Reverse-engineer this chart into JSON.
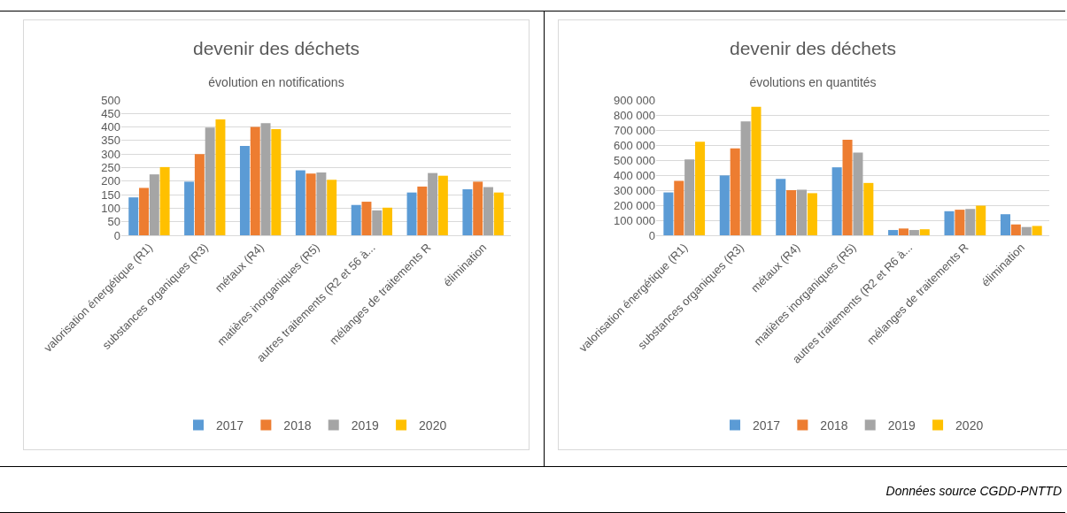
{
  "chart_data": [
    {
      "type": "bar",
      "title": "devenir des déchets",
      "subtitle": "évolution en notifications",
      "categories": [
        "valorisation énergétique (R1)",
        "substances organiques (R3)",
        "métaux (R4)",
        "matières inorganiques (R5)",
        "autres traitements (R2 et 56 à...",
        "mélanges de traitements R",
        "élimination"
      ],
      "series": [
        {
          "name": "2017",
          "color": "#5b9bd5",
          "values": [
            140,
            198,
            330,
            240,
            112,
            158,
            170
          ]
        },
        {
          "name": "2018",
          "color": "#ed7d31",
          "values": [
            175,
            300,
            400,
            228,
            124,
            180,
            198
          ]
        },
        {
          "name": "2019",
          "color": "#a5a5a5",
          "values": [
            225,
            398,
            414,
            232,
            92,
            230,
            178
          ]
        },
        {
          "name": "2020",
          "color": "#ffc000",
          "values": [
            252,
            428,
            392,
            205,
            102,
            220,
            158
          ]
        }
      ],
      "ylim": [
        0,
        500
      ],
      "yticks": [
        0,
        50,
        100,
        150,
        200,
        250,
        300,
        350,
        400,
        450,
        500
      ],
      "grid": "y",
      "legend": "bottom"
    },
    {
      "type": "bar",
      "title": "devenir des déchets",
      "subtitle": "évolutions en quantités",
      "categories": [
        "valorisation énergétique (R1)",
        "substances organiques (R3)",
        "métaux (R4)",
        "matières inorganiques (R5)",
        "autres traitements (R2 et R6 à...",
        "mélanges de traitements R",
        "élimination"
      ],
      "series": [
        {
          "name": "2017",
          "color": "#5b9bd5",
          "values": [
            285000,
            398000,
            375000,
            452000,
            35000,
            160000,
            140000
          ]
        },
        {
          "name": "2018",
          "color": "#ed7d31",
          "values": [
            362000,
            578000,
            300000,
            635000,
            45000,
            170000,
            72000
          ]
        },
        {
          "name": "2019",
          "color": "#a5a5a5",
          "values": [
            505000,
            757000,
            303000,
            550000,
            35000,
            175000,
            55000
          ]
        },
        {
          "name": "2020",
          "color": "#ffc000",
          "values": [
            622000,
            855000,
            280000,
            348000,
            40000,
            197000,
            62000
          ]
        }
      ],
      "ylim": [
        0,
        900000
      ],
      "yticks": [
        0,
        {
          "value": 100000,
          "label": "100 000"
        },
        {
          "value": 200000,
          "label": "200 000"
        },
        {
          "value": 300000,
          "label": "300 000"
        },
        {
          "value": 400000,
          "label": "400 000"
        },
        {
          "value": 500000,
          "label": "500 000"
        },
        {
          "value": 600000,
          "label": "600 000"
        },
        {
          "value": 700000,
          "label": "700 000"
        },
        {
          "value": 800000,
          "label": "800 000"
        },
        {
          "value": 900000,
          "label": "900 000"
        }
      ],
      "grid": "y",
      "legend": "bottom",
      "annotations": [
        "Données source CGDD-PNTTD"
      ]
    }
  ]
}
